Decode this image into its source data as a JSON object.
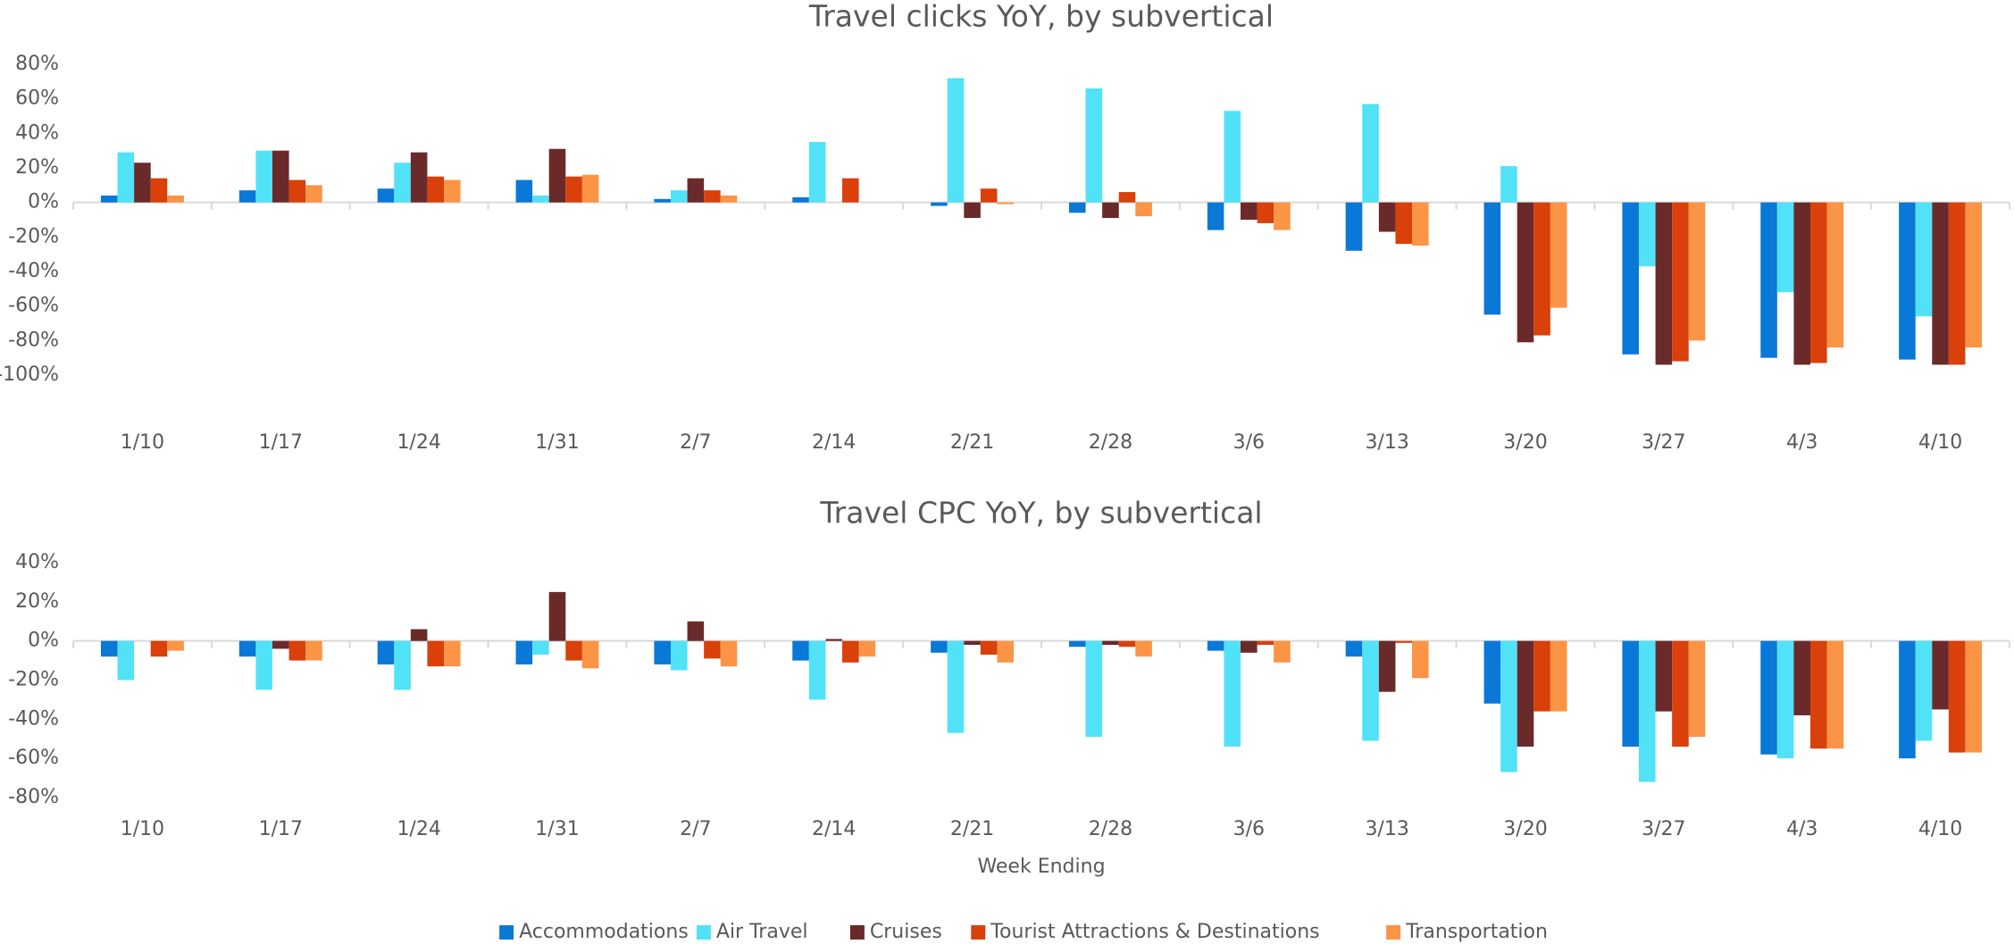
{
  "chart_data": [
    {
      "type": "bar",
      "title": "Travel clicks YoY, by subvertical",
      "categories": [
        "1/10",
        "1/17",
        "1/24",
        "1/31",
        "2/7",
        "2/14",
        "2/21",
        "2/28",
        "3/6",
        "3/13",
        "3/20",
        "3/27",
        "4/3",
        "4/10"
      ],
      "ylim": [
        -100,
        80
      ],
      "yticks": [
        {
          "value": 80,
          "label": "80%"
        },
        {
          "value": 60,
          "label": "60%"
        },
        {
          "value": 40,
          "label": "40%"
        },
        {
          "value": 20,
          "label": "20%"
        },
        {
          "value": 0,
          "label": "0%"
        },
        {
          "value": -20,
          "label": "-20%"
        },
        {
          "value": -40,
          "label": "-40%"
        },
        {
          "value": -60,
          "label": "-60%"
        },
        {
          "value": -80,
          "label": "-80%"
        },
        {
          "value": -100,
          "label": "-100%"
        }
      ],
      "series": [
        {
          "name": "Accommodations",
          "color": "#0a78d7",
          "values": [
            4,
            7,
            8,
            13,
            2,
            3,
            -2,
            -6,
            -16,
            -28,
            -65,
            -88,
            -90,
            -91
          ]
        },
        {
          "name": "Air Travel",
          "color": "#52e2f8",
          "values": [
            29,
            30,
            23,
            4,
            7,
            35,
            72,
            66,
            53,
            57,
            21,
            -37,
            -52,
            -66
          ]
        },
        {
          "name": "Cruises",
          "color": "#6b2a2a",
          "values": [
            23,
            30,
            29,
            31,
            14,
            0,
            -9,
            -9,
            -10,
            -17,
            -81,
            -94,
            -94,
            -94
          ]
        },
        {
          "name": "Tourist Attractions & Destinations",
          "color": "#d9400a",
          "values": [
            14,
            13,
            15,
            15,
            7,
            14,
            8,
            6,
            -12,
            -24,
            -77,
            -92,
            -93,
            -94
          ]
        },
        {
          "name": "Transportation",
          "color": "#fb9445",
          "values": [
            4,
            10,
            13,
            16,
            4,
            0,
            -1,
            -8,
            -16,
            -25,
            -61,
            -80,
            -84,
            -84
          ]
        }
      ]
    },
    {
      "type": "bar",
      "title": "Travel CPC YoY, by subvertical",
      "x_label": "Week Ending",
      "legend": "bottom",
      "categories": [
        "1/10",
        "1/17",
        "1/24",
        "1/31",
        "2/7",
        "2/14",
        "2/21",
        "2/28",
        "3/6",
        "3/13",
        "3/20",
        "3/27",
        "4/3",
        "4/10"
      ],
      "ylim": [
        -80,
        40
      ],
      "yticks": [
        {
          "value": 40,
          "label": "40%"
        },
        {
          "value": 20,
          "label": "20%"
        },
        {
          "value": 0,
          "label": "0%"
        },
        {
          "value": -20,
          "label": "-20%"
        },
        {
          "value": -40,
          "label": "-40%"
        },
        {
          "value": -60,
          "label": "-60%"
        },
        {
          "value": -80,
          "label": "-80%"
        }
      ],
      "series": [
        {
          "name": "Accommodations",
          "color": "#0a78d7",
          "values": [
            -8,
            -8,
            -12,
            -12,
            -12,
            -10,
            -6,
            -3,
            -5,
            -8,
            -32,
            -54,
            -58,
            -60
          ]
        },
        {
          "name": "Air Travel",
          "color": "#52e2f8",
          "values": [
            -20,
            -25,
            -25,
            -7,
            -15,
            -30,
            -47,
            -49,
            -54,
            -51,
            -67,
            -72,
            -60,
            -51
          ]
        },
        {
          "name": "Cruises",
          "color": "#6b2a2a",
          "values": [
            0,
            -4,
            6,
            25,
            10,
            1,
            -2,
            -2,
            -6,
            -26,
            -54,
            -36,
            -38,
            -35
          ]
        },
        {
          "name": "Tourist Attractions & Destinations",
          "color": "#d9400a",
          "values": [
            -8,
            -10,
            -13,
            -10,
            -9,
            -11,
            -7,
            -3,
            -2,
            -1,
            -36,
            -54,
            -55,
            -57
          ]
        },
        {
          "name": "Transportation",
          "color": "#fb9445",
          "values": [
            -5,
            -10,
            -13,
            -14,
            -13,
            -8,
            -11,
            -8,
            -11,
            -19,
            -36,
            -49,
            -55,
            -57
          ]
        }
      ]
    }
  ]
}
